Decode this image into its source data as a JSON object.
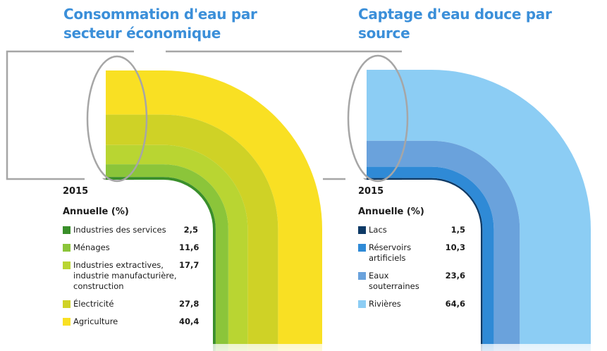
{
  "chart_data": [
    {
      "type": "pie",
      "style": "pipe-bend stacked band",
      "title": "Consommation d'eau par secteur économique",
      "year": "2015",
      "subtitle": "Annuelle (%)",
      "unit": "%",
      "series": [
        {
          "name": "Industries des services",
          "value": 2.5,
          "label": "2,5",
          "color": "#3a8f2a"
        },
        {
          "name": "Ménages",
          "value": 11.6,
          "label": "11,6",
          "color": "#8bc53a"
        },
        {
          "name": "Industries extractives, industrie manufacturière, construction",
          "value": 17.7,
          "label": "17,7",
          "color": "#b9d532"
        },
        {
          "name": "Électricité",
          "value": 27.8,
          "label": "27,8",
          "color": "#cfd226"
        },
        {
          "name": "Agriculture",
          "value": 40.4,
          "label": "40,4",
          "color": "#f9e023"
        }
      ]
    },
    {
      "type": "pie",
      "style": "pipe-bend stacked band",
      "title": "Captage d'eau douce par source",
      "year": "2015",
      "subtitle": "Annuelle (%)",
      "unit": "%",
      "series": [
        {
          "name": "Lacs",
          "value": 1.5,
          "label": "1,5",
          "color": "#0e3a66"
        },
        {
          "name": "Réservoirs artificiels",
          "value": 10.3,
          "label": "10,3",
          "color": "#2f8ad6"
        },
        {
          "name": "Eaux souterraines",
          "value": 23.6,
          "label": "23,6",
          "color": "#6aa2dc"
        },
        {
          "name": "Rivières",
          "value": 64.6,
          "label": "64,6",
          "color": "#8ccdf4"
        }
      ]
    }
  ],
  "colors": {
    "title": "#3b8fd9",
    "pipe_outline": "#a6a6a6"
  }
}
